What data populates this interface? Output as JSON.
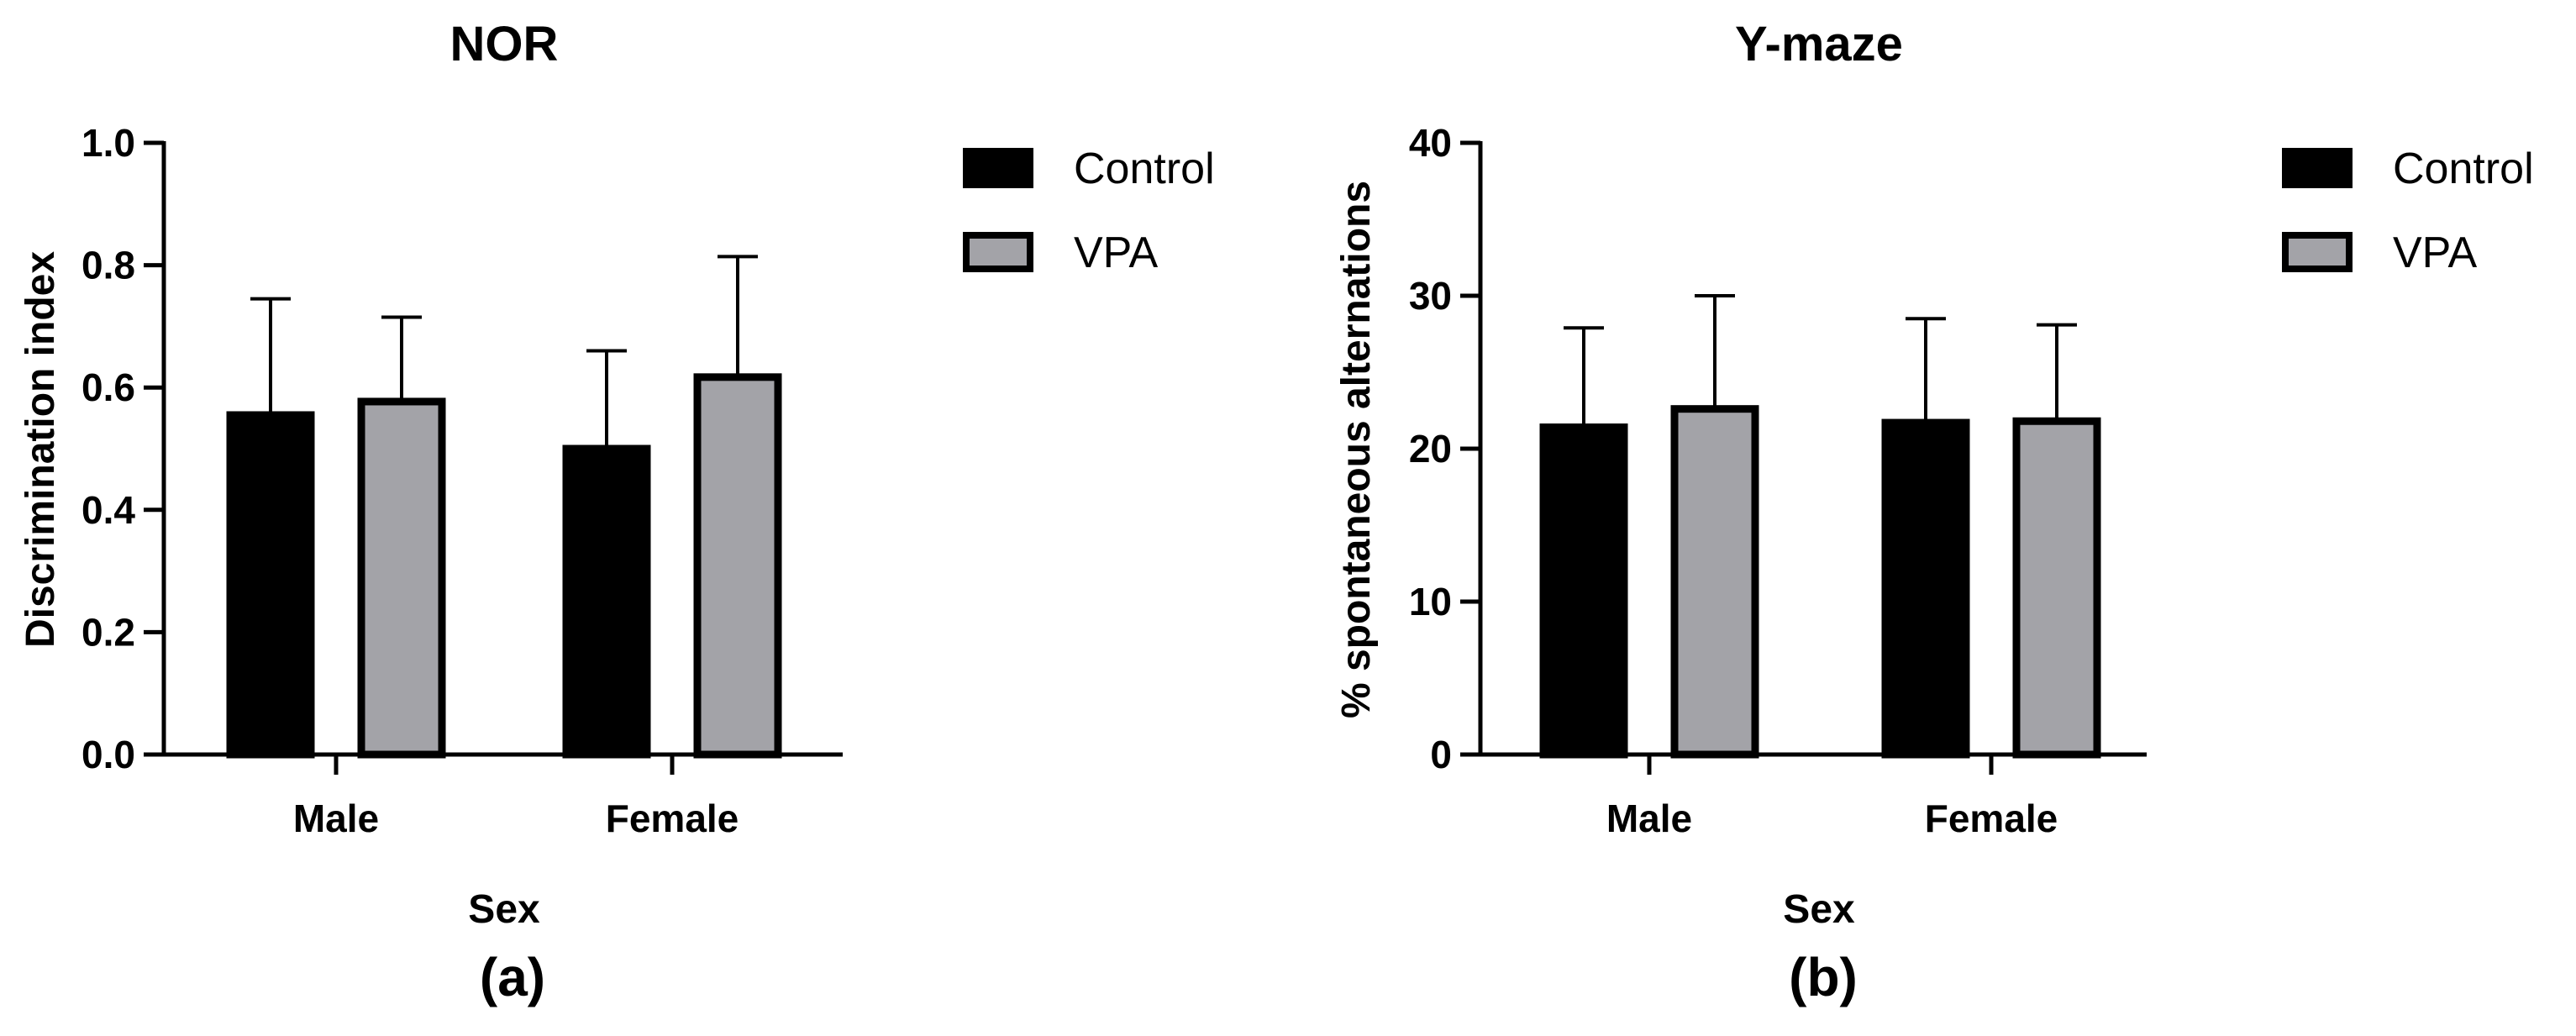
{
  "chart_data": [
    {
      "type": "bar",
      "title": "NOR",
      "xlabel": "Sex",
      "ylabel": "Discrimination index",
      "panel_label": "(a)",
      "categories": [
        "Male",
        "Female"
      ],
      "ylim": [
        0,
        1.0
      ],
      "yticks": [
        "0.0",
        "0.2",
        "0.4",
        "0.6",
        "0.8",
        "1.0"
      ],
      "ytick_values": [
        0,
        0.2,
        0.4,
        0.6,
        0.8,
        1.0
      ],
      "legend_position": "top-right",
      "series": [
        {
          "name": "Control",
          "color": "#000000",
          "values": [
            0.555,
            0.5
          ],
          "errors": [
            0.19,
            0.16
          ]
        },
        {
          "name": "VPA",
          "color": "#a3a3a8",
          "values": [
            0.577,
            0.617
          ],
          "errors": [
            0.138,
            0.197
          ]
        }
      ]
    },
    {
      "type": "bar",
      "title": "Y-maze",
      "xlabel": "Sex",
      "ylabel": "% spontaneous alternations",
      "panel_label": "(b)",
      "categories": [
        "Male",
        "Female"
      ],
      "ylim": [
        0,
        40
      ],
      "yticks": [
        "0",
        "10",
        "20",
        "30",
        "40"
      ],
      "ytick_values": [
        0,
        10,
        20,
        30,
        40
      ],
      "legend_position": "top-right",
      "series": [
        {
          "name": "Control",
          "color": "#000000",
          "values": [
            21.4,
            21.7
          ],
          "errors": [
            6.5,
            6.8
          ]
        },
        {
          "name": "VPA",
          "color": "#a3a3a8",
          "values": [
            22.6,
            21.8
          ],
          "errors": [
            7.4,
            6.3
          ]
        }
      ]
    }
  ]
}
